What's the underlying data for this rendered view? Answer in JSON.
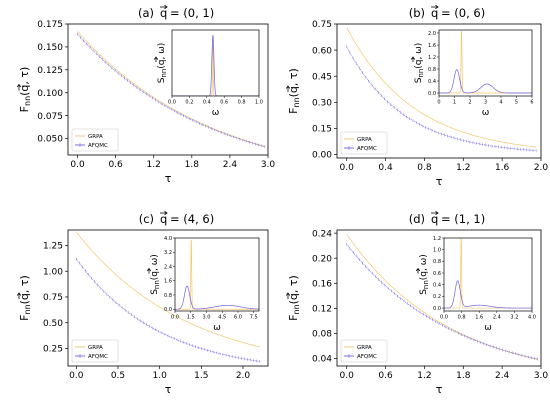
{
  "colors": {
    "grpa": "#f5c56b",
    "afqmc": "#6d63e6",
    "axes": "#000000",
    "background": "#ffffff"
  },
  "chart_data": [
    {
      "type": "line",
      "title": "(a)  q = (0, 1)",
      "title_prefix": "(a)",
      "title_q": "= (0, 1)",
      "xlabel": "τ",
      "ylabel": "Fnn(q, τ)",
      "xlim": [
        -0.15,
        3.0
      ],
      "ylim": [
        0.032,
        0.175
      ],
      "xticks": [
        "0.0",
        "0.6",
        "1.2",
        "1.8",
        "2.4",
        "3.0"
      ],
      "xtick_values": [
        0.0,
        0.6,
        1.2,
        1.8,
        2.4,
        3.0
      ],
      "yticks": [
        "0.050",
        "0.075",
        "0.100",
        "0.125",
        "0.150",
        "0.175"
      ],
      "ytick_values": [
        0.05,
        0.075,
        0.1,
        0.125,
        0.15,
        0.175
      ],
      "legend": {
        "placement": "lower-left",
        "entries": [
          "GRPA",
          "AFQMC"
        ]
      },
      "series": [
        {
          "name": "GRPA",
          "curve": {
            "x0": 0.0,
            "x1": 2.95,
            "y0": 0.167,
            "decay": 0.472
          }
        },
        {
          "name": "AFQMC",
          "curve": {
            "x0": 0.0,
            "x1": 2.95,
            "y0": 0.164,
            "decay": 0.47
          }
        }
      ],
      "inset": {
        "type": "line",
        "xlabel": "ω",
        "ylabel": "Snn(q, ω)",
        "xlim": [
          0.0,
          1.0
        ],
        "ylim": [
          0.0,
          1.0
        ],
        "xticks": [
          "0.0",
          "0.2",
          "0.4",
          "0.6",
          "0.8",
          "1.0"
        ],
        "xtick_values": [
          0.0,
          0.2,
          0.4,
          0.6,
          0.8,
          1.0
        ],
        "yticks": [],
        "ytick_values": [],
        "series": [
          {
            "name": "GRPA",
            "peaks": [
              {
                "center": 0.47,
                "height": 0.93,
                "width": 0.004
              }
            ]
          },
          {
            "name": "AFQMC",
            "peaks": [
              {
                "center": 0.47,
                "height": 0.92,
                "width": 0.012
              }
            ]
          }
        ]
      }
    },
    {
      "type": "line",
      "title": "(b)  q = (0, 6)",
      "title_prefix": "(b)",
      "title_q": "= (0, 6)",
      "xlabel": "τ",
      "ylabel": "Fnn(q, τ)",
      "xlim": [
        -0.1,
        2.0
      ],
      "ylim": [
        -0.02,
        0.75
      ],
      "xticks": [
        "0.0",
        "0.4",
        "0.8",
        "1.2",
        "1.6",
        "2.0"
      ],
      "xtick_values": [
        0.0,
        0.4,
        0.8,
        1.2,
        1.6,
        2.0
      ],
      "yticks": [
        "0.00",
        "0.15",
        "0.30",
        "0.45",
        "0.60",
        "0.75"
      ],
      "ytick_values": [
        0.0,
        0.15,
        0.3,
        0.45,
        0.6,
        0.75
      ],
      "legend": {
        "placement": "lower-left",
        "entries": [
          "GRPA",
          "AFQMC"
        ]
      },
      "series": [
        {
          "name": "GRPA",
          "curve": {
            "x0": 0.0,
            "x1": 1.95,
            "y0": 0.73,
            "decay": 1.45
          }
        },
        {
          "name": "AFQMC",
          "curve": {
            "x0": 0.0,
            "x1": 1.95,
            "y0": 0.62,
            "decay": 1.7
          }
        }
      ],
      "inset": {
        "type": "line",
        "xlabel": "ω",
        "ylabel": "Snn(q, ω)",
        "xlim": [
          0.0,
          6.0
        ],
        "ylim": [
          -0.1,
          2.1
        ],
        "xticks": [
          "0",
          "1",
          "2",
          "3",
          "4",
          "5",
          "6"
        ],
        "xtick_values": [
          0,
          1,
          2,
          3,
          4,
          5,
          6
        ],
        "yticks": [
          "0.0",
          "0.4",
          "0.8",
          "1.2",
          "1.6",
          "2.0"
        ],
        "ytick_values": [
          0.0,
          0.4,
          0.8,
          1.2,
          1.6,
          2.0
        ],
        "series": [
          {
            "name": "GRPA",
            "peaks": [
              {
                "center": 1.45,
                "height": 2.1,
                "width": 0.03
              }
            ]
          },
          {
            "name": "AFQMC",
            "peaks": [
              {
                "center": 1.15,
                "height": 0.78,
                "width": 0.18
              },
              {
                "center": 3.1,
                "height": 0.3,
                "width": 0.4
              }
            ]
          }
        ]
      }
    },
    {
      "type": "line",
      "title": "(c)  q = (4, 6)",
      "title_prefix": "(c)",
      "title_q": "= (4, 6)",
      "xlabel": "τ",
      "ylabel": "Fnn(q, τ)",
      "xlim": [
        -0.1,
        2.3
      ],
      "ylim": [
        0.08,
        1.4
      ],
      "xticks": [
        "0.0",
        "0.5",
        "1.0",
        "1.5",
        "2.0"
      ],
      "xtick_values": [
        0.0,
        0.5,
        1.0,
        1.5,
        2.0
      ],
      "yticks": [
        "0.25",
        "0.50",
        "0.75",
        "1.00",
        "1.25"
      ],
      "ytick_values": [
        0.25,
        0.5,
        0.75,
        1.0,
        1.25
      ],
      "legend": {
        "placement": "lower-left",
        "entries": [
          "GRPA",
          "AFQMC"
        ]
      },
      "series": [
        {
          "name": "GRPA",
          "curve": {
            "x0": 0.0,
            "x1": 2.2,
            "y0": 1.38,
            "decay": 0.75
          }
        },
        {
          "name": "AFQMC",
          "curve": {
            "x0": 0.0,
            "x1": 2.2,
            "y0": 1.12,
            "decay": 1.0
          }
        }
      ],
      "inset": {
        "type": "line",
        "xlabel": "ω",
        "ylabel": "Snn(q, ω)",
        "xlim": [
          0.0,
          8.0
        ],
        "ylim": [
          -0.1,
          4.0
        ],
        "xticks": [
          "0.0",
          "1.5",
          "3.0",
          "4.5",
          "6.0",
          "7.5"
        ],
        "xtick_values": [
          0.0,
          1.5,
          3.0,
          4.5,
          6.0,
          7.5
        ],
        "yticks": [
          "0.0",
          "0.8",
          "1.6",
          "2.4",
          "3.2",
          "4.0"
        ],
        "ytick_values": [
          0.0,
          0.8,
          1.6,
          2.4,
          3.2,
          4.0
        ],
        "series": [
          {
            "name": "GRPA",
            "peaks": [
              {
                "center": 1.55,
                "height": 4.0,
                "width": 0.04
              }
            ]
          },
          {
            "name": "AFQMC",
            "peaks": [
              {
                "center": 1.15,
                "height": 1.3,
                "width": 0.25
              },
              {
                "center": 5.0,
                "height": 0.22,
                "width": 1.2
              }
            ]
          }
        ]
      }
    },
    {
      "type": "line",
      "title": "(d)  q = (1, 1)",
      "title_prefix": "(d)",
      "title_q": "= (1, 1)",
      "xlabel": "τ",
      "ylabel": "Fnn(q, τ)",
      "xlim": [
        -0.15,
        3.0
      ],
      "ylim": [
        0.028,
        0.245
      ],
      "xticks": [
        "0.0",
        "0.6",
        "1.2",
        "1.8",
        "2.4",
        "3.0"
      ],
      "xtick_values": [
        0.0,
        0.6,
        1.2,
        1.8,
        2.4,
        3.0
      ],
      "yticks": [
        "0.04",
        "0.08",
        "0.12",
        "0.16",
        "0.20",
        "0.24"
      ],
      "ytick_values": [
        0.04,
        0.08,
        0.12,
        0.16,
        0.2,
        0.24
      ],
      "legend": {
        "placement": "lower-left",
        "entries": [
          "GRPA",
          "AFQMC"
        ]
      },
      "series": [
        {
          "name": "GRPA",
          "curve": {
            "x0": 0.0,
            "x1": 2.95,
            "y0": 0.238,
            "decay": 0.62
          }
        },
        {
          "name": "AFQMC",
          "curve": {
            "x0": 0.0,
            "x1": 2.95,
            "y0": 0.222,
            "decay": 0.59
          }
        }
      ],
      "inset": {
        "type": "line",
        "xlabel": "ω",
        "ylabel": "Snn(q, ω)",
        "xlim": [
          0.0,
          4.0
        ],
        "ylim": [
          -0.05,
          1.2
        ],
        "xticks": [
          "0.0",
          "0.8",
          "1.6",
          "2.4",
          "3.2",
          "4.0"
        ],
        "xtick_values": [
          0.0,
          0.8,
          1.6,
          2.4,
          3.2,
          4.0
        ],
        "yticks": [
          "0.0",
          "0.2",
          "0.4",
          "0.6",
          "0.8",
          "1.0",
          "1.2"
        ],
        "ytick_values": [
          0.0,
          0.2,
          0.4,
          0.6,
          0.8,
          1.0,
          1.2
        ],
        "series": [
          {
            "name": "GRPA",
            "peaks": [
              {
                "center": 0.78,
                "height": 1.25,
                "width": 0.02
              }
            ]
          },
          {
            "name": "AFQMC",
            "peaks": [
              {
                "center": 0.62,
                "height": 0.46,
                "width": 0.12
              },
              {
                "center": 1.6,
                "height": 0.05,
                "width": 0.5
              }
            ]
          }
        ]
      }
    }
  ]
}
